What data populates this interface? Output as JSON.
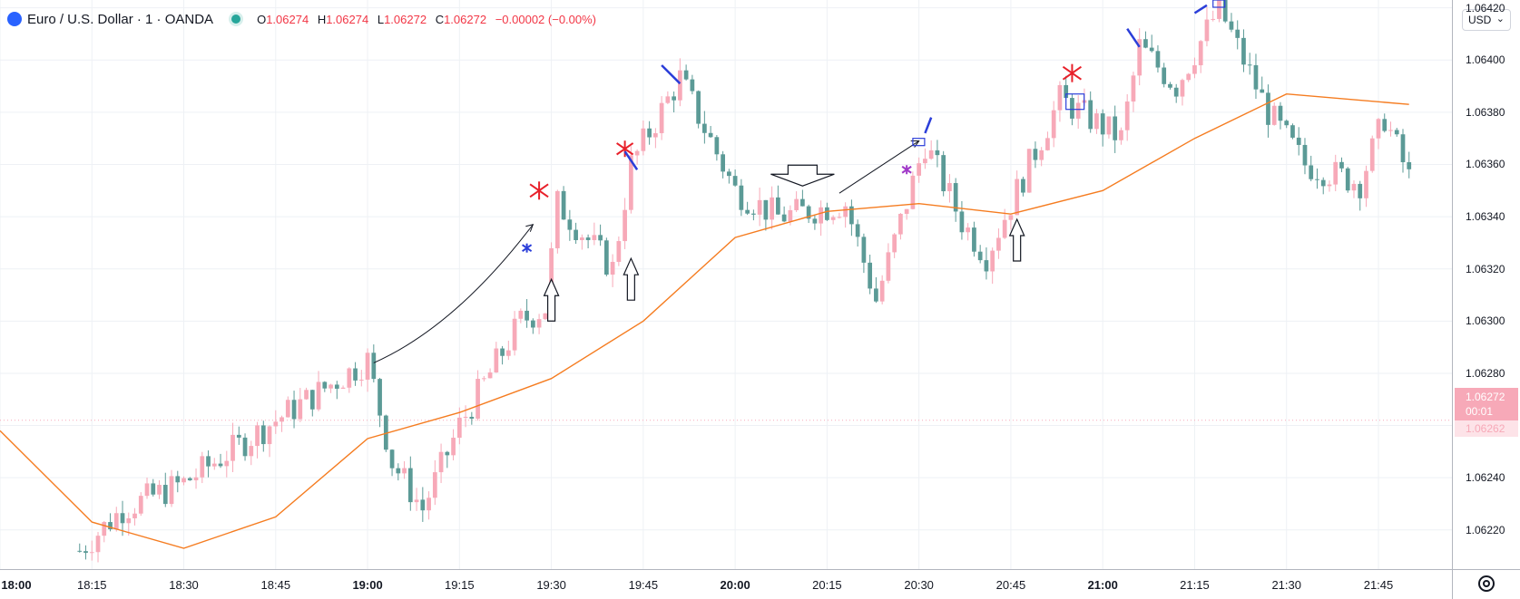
{
  "legend": {
    "symbol": "Euro / U.S. Dollar · 1 · OANDA",
    "o_label": "O",
    "o": "1.06274",
    "h_label": "H",
    "h": "1.06274",
    "l_label": "L",
    "l": "1.06272",
    "c_label": "C",
    "c": "1.06272",
    "change": "−0.00002 (−0.00%)"
  },
  "currency_button": "USD",
  "last_price": {
    "price": "1.06272",
    "countdown": "00:01"
  },
  "prev_price": "1.06262",
  "colors": {
    "up": "#f7a9b8",
    "down": "#5b9a96",
    "ma": "#f57c20",
    "grid": "#eef1f5",
    "annotation_red": "#e8202a",
    "annotation_blue": "#2b3ed9",
    "annotation_purple": "#a038c8"
  },
  "chart_data": {
    "type": "candlestick",
    "symbol": "EURUSD",
    "interval": "1",
    "y_ticks": [
      "1.06220",
      "1.06240",
      "1.06260",
      "1.06280",
      "1.06300",
      "1.06320",
      "1.06340",
      "1.06360",
      "1.06380",
      "1.06400",
      "1.06420"
    ],
    "ylim": [
      1.06205,
      1.06423
    ],
    "x_ticks": [
      {
        "label": "18:00",
        "bold": true
      },
      {
        "label": "18:15",
        "bold": false
      },
      {
        "label": "18:30",
        "bold": false
      },
      {
        "label": "18:45",
        "bold": false
      },
      {
        "label": "19:00",
        "bold": true
      },
      {
        "label": "19:15",
        "bold": false
      },
      {
        "label": "19:30",
        "bold": false
      },
      {
        "label": "19:45",
        "bold": false
      },
      {
        "label": "20:00",
        "bold": true
      },
      {
        "label": "20:15",
        "bold": false
      },
      {
        "label": "20:30",
        "bold": false
      },
      {
        "label": "20:45",
        "bold": false
      },
      {
        "label": "21:00",
        "bold": true
      },
      {
        "label": "21:15",
        "bold": false
      },
      {
        "label": "21:30",
        "bold": false
      },
      {
        "label": "21:45",
        "bold": false
      }
    ],
    "x_start_minute": 1080,
    "x_end_minute": 1317,
    "key_closes": [
      {
        "time": "18:13",
        "value": 1.06212
      },
      {
        "time": "18:20",
        "value": 1.06228
      },
      {
        "time": "18:30",
        "value": 1.06238
      },
      {
        "time": "18:45",
        "value": 1.06262
      },
      {
        "time": "19:00",
        "value": 1.06285
      },
      {
        "time": "19:04",
        "value": 1.06246
      },
      {
        "time": "19:09",
        "value": 1.06228
      },
      {
        "time": "19:15",
        "value": 1.0626
      },
      {
        "time": "19:25",
        "value": 1.063
      },
      {
        "time": "19:29",
        "value": 1.06305
      },
      {
        "time": "19:31",
        "value": 1.06345
      },
      {
        "time": "19:40",
        "value": 1.0632
      },
      {
        "time": "19:43",
        "value": 1.0636
      },
      {
        "time": "19:51",
        "value": 1.06393
      },
      {
        "time": "20:00",
        "value": 1.0635
      },
      {
        "time": "20:07",
        "value": 1.0634
      },
      {
        "time": "20:18",
        "value": 1.06345
      },
      {
        "time": "20:23",
        "value": 1.06308
      },
      {
        "time": "20:31",
        "value": 1.06368
      },
      {
        "time": "20:37",
        "value": 1.06338
      },
      {
        "time": "20:41",
        "value": 1.06325
      },
      {
        "time": "20:45",
        "value": 1.06345
      },
      {
        "time": "20:53",
        "value": 1.06385
      },
      {
        "time": "21:03",
        "value": 1.0637
      },
      {
        "time": "21:06",
        "value": 1.06405
      },
      {
        "time": "21:12",
        "value": 1.0639
      },
      {
        "time": "21:19",
        "value": 1.0642
      },
      {
        "time": "21:27",
        "value": 1.0638
      },
      {
        "time": "21:33",
        "value": 1.0636
      },
      {
        "time": "21:42",
        "value": 1.06353
      },
      {
        "time": "21:46",
        "value": 1.06378
      },
      {
        "time": "21:50",
        "value": 1.06355
      }
    ],
    "moving_average": [
      {
        "time": "18:00",
        "value": 1.06258
      },
      {
        "time": "18:15",
        "value": 1.06223
      },
      {
        "time": "18:30",
        "value": 1.06213
      },
      {
        "time": "18:45",
        "value": 1.06225
      },
      {
        "time": "19:00",
        "value": 1.06255
      },
      {
        "time": "19:15",
        "value": 1.06265
      },
      {
        "time": "19:30",
        "value": 1.06278
      },
      {
        "time": "19:45",
        "value": 1.063
      },
      {
        "time": "20:00",
        "value": 1.06332
      },
      {
        "time": "20:15",
        "value": 1.06342
      },
      {
        "time": "20:30",
        "value": 1.06345
      },
      {
        "time": "20:45",
        "value": 1.06341
      },
      {
        "time": "21:00",
        "value": 1.0635
      },
      {
        "time": "21:15",
        "value": 1.0637
      },
      {
        "time": "21:30",
        "value": 1.06387
      },
      {
        "time": "21:50",
        "value": 1.06383
      }
    ],
    "grid": true
  }
}
